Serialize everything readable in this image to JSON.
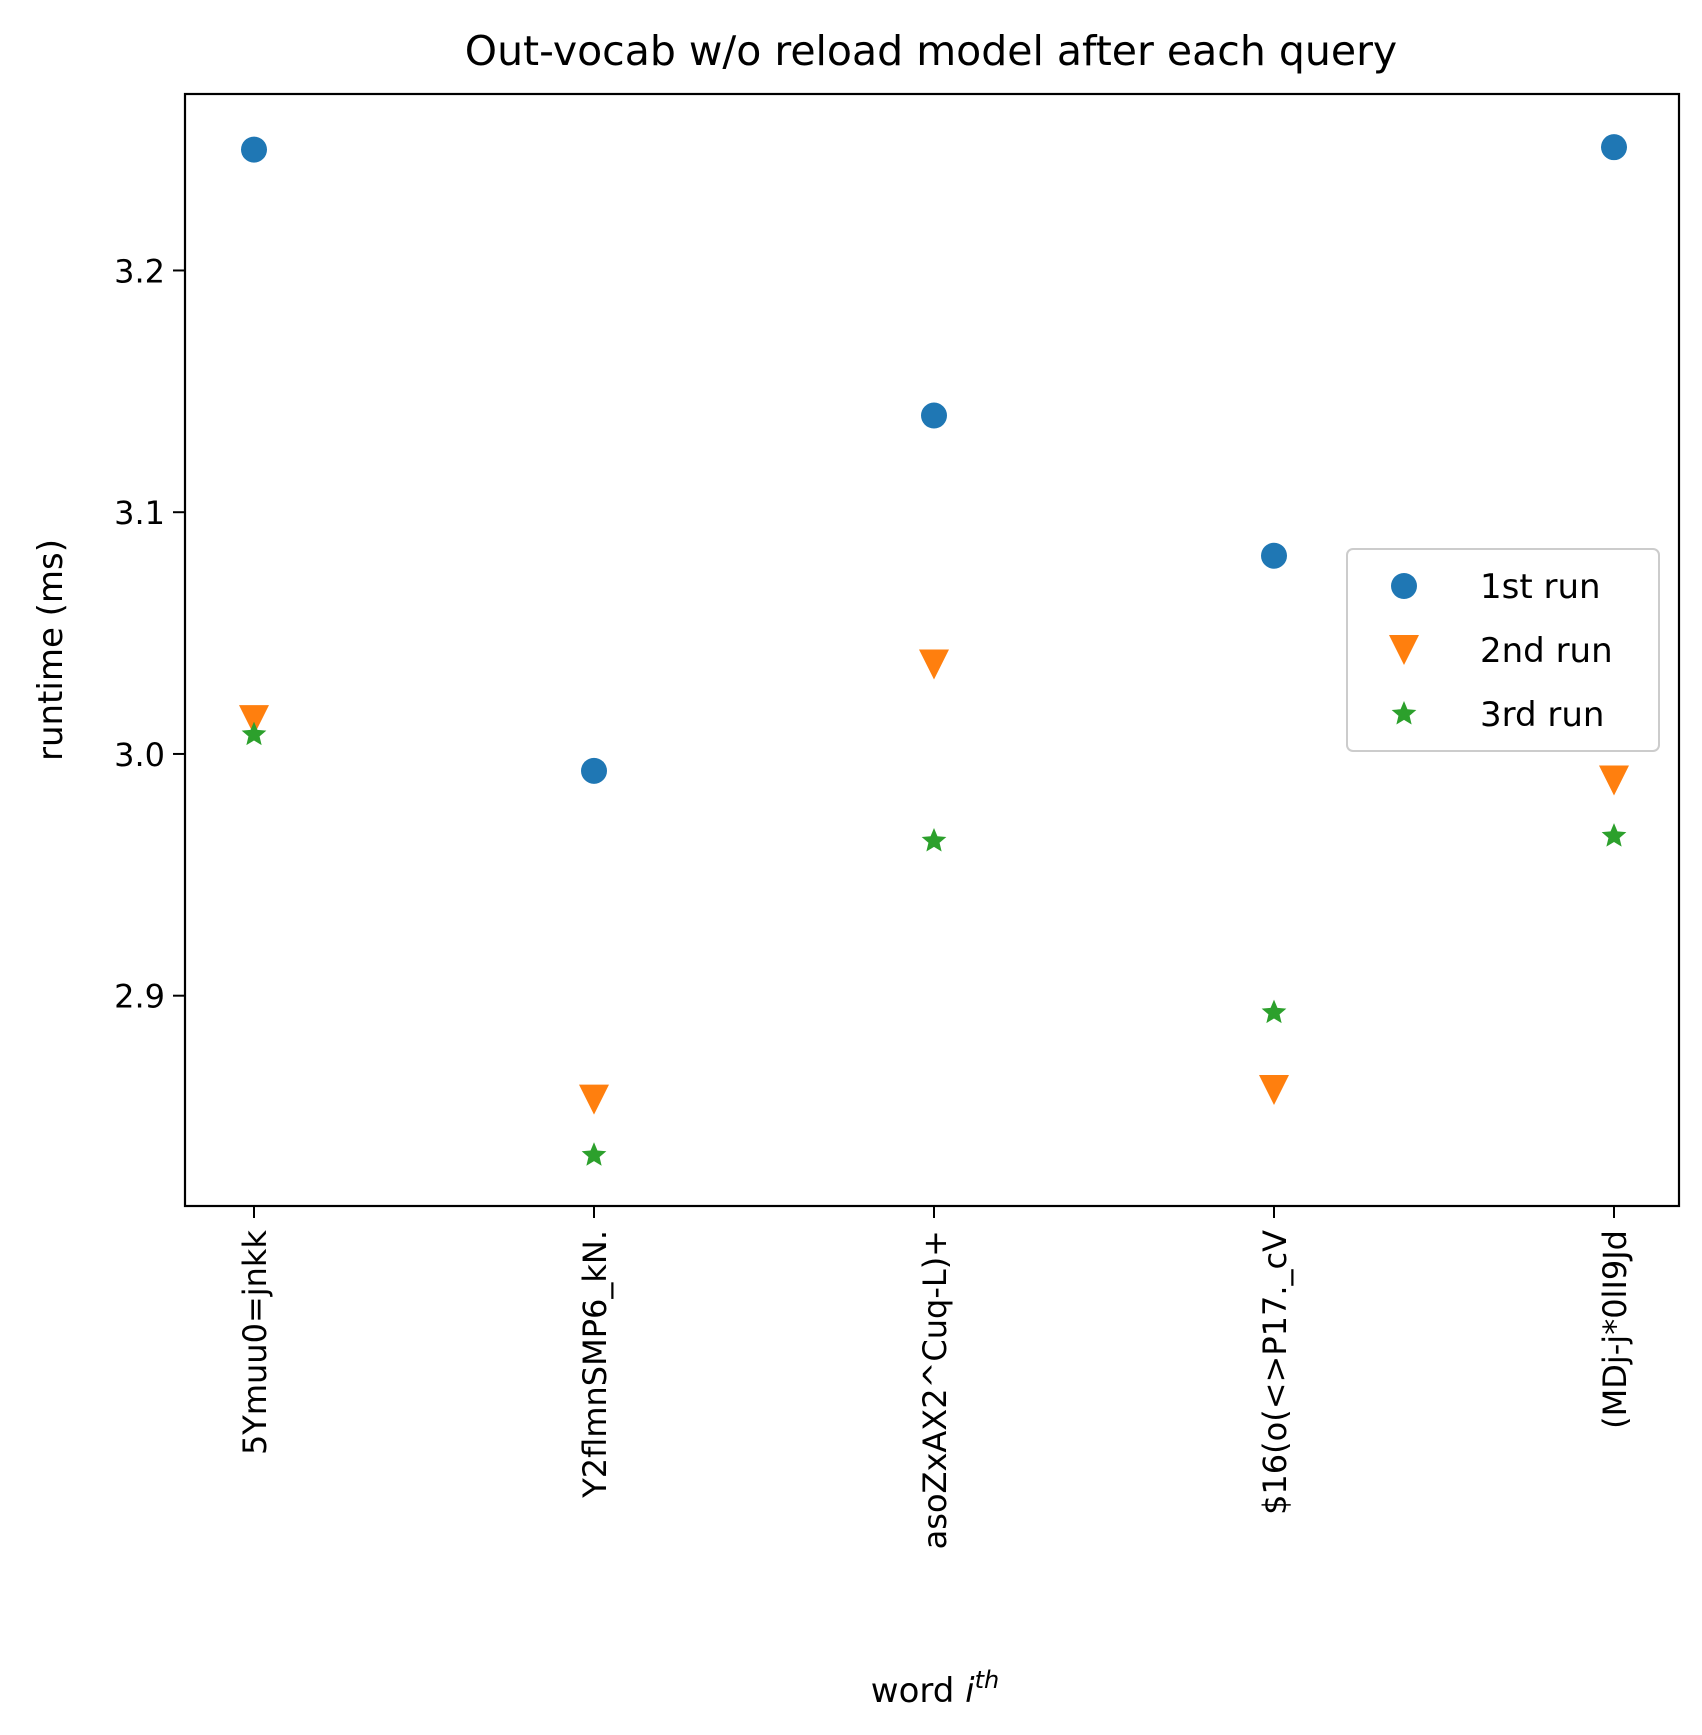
{
  "chart_data": {
    "type": "scatter",
    "title": "Out-vocab w/o reload model after each query",
    "xlabel_main": "word ",
    "xlabel_italic": "i",
    "xlabel_sup": "th",
    "ylabel": "runtime (ms)",
    "categories": [
      "5Ymuu0=jnkk",
      "Y2flmnSMP6_kN.",
      "asoZxAX2^Cuq-L)+",
      "$16(o(<>P17._cV",
      "(MDj-j*0lI9Jd"
    ],
    "ylim": [
      2.813,
      3.273
    ],
    "yticks": [
      2.9,
      3.0,
      3.1,
      3.2
    ],
    "ytick_labels": [
      "2.9",
      "3.0",
      "3.1",
      "3.2"
    ],
    "grid": false,
    "legend_position": "center-right",
    "series": [
      {
        "name": "1st run",
        "marker": "circle",
        "color": "#1f77b4",
        "values": [
          3.25,
          2.993,
          3.14,
          3.082,
          3.251
        ]
      },
      {
        "name": "2nd run",
        "marker": "triangle-down",
        "color": "#ff7f0e",
        "values": [
          3.014,
          2.857,
          3.037,
          2.861,
          2.989
        ]
      },
      {
        "name": "3rd run",
        "marker": "star",
        "color": "#2ca02c",
        "values": [
          3.008,
          2.834,
          2.964,
          2.893,
          2.966
        ]
      }
    ]
  }
}
